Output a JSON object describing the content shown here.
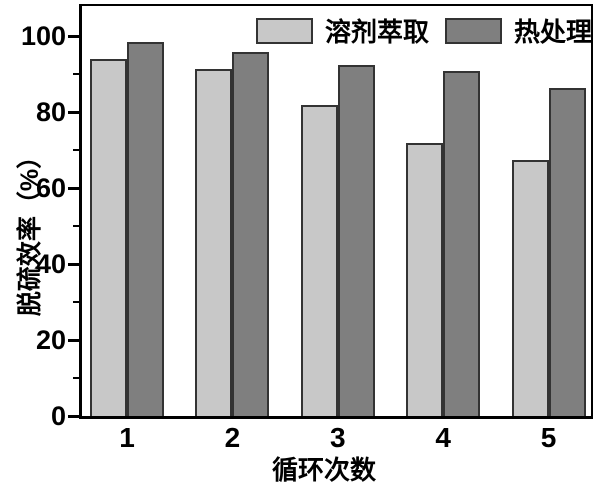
{
  "chart_data": {
    "type": "bar",
    "title": "",
    "xlabel": "循环次数",
    "ylabel": "脱硫效率（%）",
    "categories": [
      "1",
      "2",
      "3",
      "4",
      "5"
    ],
    "series": [
      {
        "name": "溶剂萃取",
        "color": "#c8c8c8",
        "values": [
          94,
          91.5,
          82,
          72,
          67.5
        ]
      },
      {
        "name": "热处理",
        "color": "#7f7f7f",
        "values": [
          98.5,
          96,
          92.5,
          91,
          86.5
        ]
      }
    ],
    "ylim": [
      0,
      108
    ],
    "y_major_ticks": [
      0,
      20,
      40,
      60,
      80,
      100
    ],
    "y_minor_step": 10,
    "grid": false,
    "legend_position": "top-center-inside",
    "colors": {
      "axis": "#000000",
      "bar_border": "#333333",
      "background": "#ffffff",
      "text": "#000000"
    }
  }
}
